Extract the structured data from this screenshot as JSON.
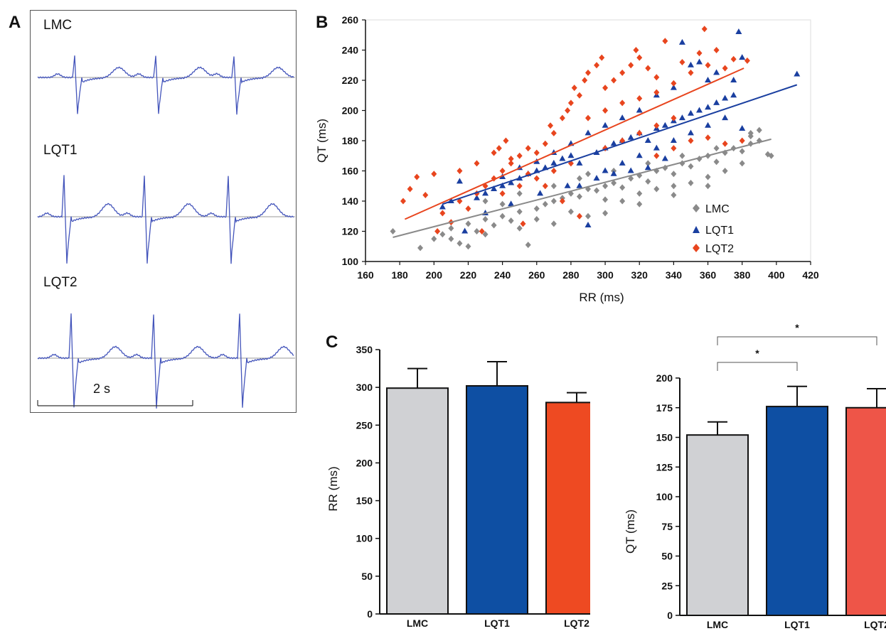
{
  "panels": {
    "a": "A",
    "b": "B",
    "c": "C"
  },
  "ecg": {
    "traces": [
      {
        "label": "LMC",
        "color": "#4455bb"
      },
      {
        "label": "LQT1",
        "color": "#4455bb"
      },
      {
        "label": "LQT2",
        "color": "#4455bb"
      }
    ],
    "scale_bar_label": "2 s"
  },
  "chart_data": [
    {
      "type": "scatter",
      "xlabel": "RR (ms)",
      "ylabel": "QT (ms)",
      "xlim": [
        160,
        420
      ],
      "ylim": [
        100,
        260
      ],
      "xticks": [
        160,
        180,
        200,
        220,
        240,
        260,
        280,
        300,
        320,
        340,
        360,
        380,
        400,
        420
      ],
      "yticks": [
        100,
        120,
        140,
        160,
        180,
        200,
        220,
        240,
        260
      ],
      "legend_position": "lower-right",
      "series": [
        {
          "name": "LMC",
          "color": "#8a8a8a",
          "marker": "diamond",
          "points": [
            [
              176,
              120
            ],
            [
              192,
              109
            ],
            [
              200,
              115
            ],
            [
              205,
              118
            ],
            [
              210,
              122
            ],
            [
              215,
              112
            ],
            [
              220,
              125
            ],
            [
              225,
              120
            ],
            [
              230,
              128
            ],
            [
              235,
              124
            ],
            [
              240,
              130
            ],
            [
              245,
              127
            ],
            [
              250,
              133
            ],
            [
              255,
              111
            ],
            [
              260,
              135
            ],
            [
              265,
              138
            ],
            [
              270,
              140
            ],
            [
              275,
              142
            ],
            [
              280,
              145
            ],
            [
              285,
              143
            ],
            [
              290,
              148
            ],
            [
              295,
              147
            ],
            [
              300,
              150
            ],
            [
              305,
              152
            ],
            [
              310,
              149
            ],
            [
              315,
              155
            ],
            [
              320,
              157
            ],
            [
              325,
              153
            ],
            [
              330,
              160
            ],
            [
              335,
              162
            ],
            [
              340,
              158
            ],
            [
              345,
              165
            ],
            [
              350,
              163
            ],
            [
              355,
              168
            ],
            [
              360,
              170
            ],
            [
              365,
              166
            ],
            [
              370,
              172
            ],
            [
              375,
              175
            ],
            [
              380,
              173
            ],
            [
              385,
              178
            ],
            [
              390,
              180
            ],
            [
              395,
              171
            ],
            [
              397,
              170
            ],
            [
              240,
              138
            ],
            [
              260,
              128
            ],
            [
              280,
              133
            ],
            [
              300,
              141
            ],
            [
              320,
              145
            ],
            [
              340,
              150
            ],
            [
              360,
              156
            ],
            [
              380,
              165
            ],
            [
              270,
              125
            ],
            [
              290,
              130
            ],
            [
              310,
              140
            ],
            [
              330,
              148
            ],
            [
              350,
              152
            ],
            [
              370,
              160
            ],
            [
              250,
              122
            ],
            [
              230,
              118
            ],
            [
              210,
              115
            ],
            [
              285,
              155
            ],
            [
              305,
              160
            ],
            [
              325,
              165
            ],
            [
              345,
              170
            ],
            [
              365,
              175
            ],
            [
              385,
              185
            ],
            [
              390,
              187
            ],
            [
              385,
              183
            ],
            [
              220,
              110
            ],
            [
              300,
              132
            ],
            [
              320,
              138
            ],
            [
              340,
              144
            ],
            [
              360,
              150
            ],
            [
              230,
              140
            ],
            [
              250,
              145
            ],
            [
              270,
              150
            ],
            [
              290,
              158
            ]
          ],
          "trend": [
            [
              176,
              116
            ],
            [
              397,
              181
            ]
          ]
        },
        {
          "name": "LQT1",
          "color": "#1a3fa0",
          "marker": "triangle",
          "points": [
            [
              205,
              136
            ],
            [
              210,
              140
            ],
            [
              215,
              153
            ],
            [
              218,
              120
            ],
            [
              225,
              142
            ],
            [
              230,
              145
            ],
            [
              235,
              148
            ],
            [
              240,
              150
            ],
            [
              245,
              152
            ],
            [
              250,
              155
            ],
            [
              255,
              158
            ],
            [
              260,
              160
            ],
            [
              265,
              162
            ],
            [
              270,
              165
            ],
            [
              275,
              168
            ],
            [
              280,
              170
            ],
            [
              285,
              165
            ],
            [
              290,
              124
            ],
            [
              295,
              172
            ],
            [
              300,
              175
            ],
            [
              305,
              178
            ],
            [
              310,
              180
            ],
            [
              315,
              182
            ],
            [
              320,
              185
            ],
            [
              325,
              180
            ],
            [
              330,
              188
            ],
            [
              335,
              190
            ],
            [
              340,
              193
            ],
            [
              345,
              195
            ],
            [
              350,
              198
            ],
            [
              355,
              200
            ],
            [
              360,
              202
            ],
            [
              365,
              205
            ],
            [
              370,
              208
            ],
            [
              375,
              210
            ],
            [
              378,
              252
            ],
            [
              380,
              235
            ],
            [
              412,
              224
            ],
            [
              360,
              220
            ],
            [
              350,
              230
            ],
            [
              340,
              215
            ],
            [
              330,
              210
            ],
            [
              320,
              200
            ],
            [
              310,
              195
            ],
            [
              300,
              190
            ],
            [
              290,
              185
            ],
            [
              280,
              178
            ],
            [
              270,
              172
            ],
            [
              260,
              166
            ],
            [
              250,
              162
            ],
            [
              240,
              156
            ],
            [
              300,
              160
            ],
            [
              310,
              165
            ],
            [
              320,
              170
            ],
            [
              330,
              175
            ],
            [
              340,
              180
            ],
            [
              350,
              185
            ],
            [
              360,
              190
            ],
            [
              370,
              195
            ],
            [
              380,
              188
            ],
            [
              355,
              232
            ],
            [
              345,
              245
            ],
            [
              365,
              225
            ],
            [
              375,
              220
            ],
            [
              315,
              160
            ],
            [
              325,
              162
            ],
            [
              335,
              168
            ],
            [
              285,
              150
            ],
            [
              295,
              155
            ],
            [
              305,
              158
            ],
            [
              230,
              132
            ],
            [
              245,
              138
            ],
            [
              262,
              145
            ],
            [
              278,
              150
            ]
          ],
          "trend": [
            [
              205,
              138
            ],
            [
              412,
              217
            ]
          ]
        },
        {
          "name": "LQT2",
          "color": "#e8451e",
          "marker": "diamond",
          "points": [
            [
              182,
              140
            ],
            [
              186,
              148
            ],
            [
              190,
              156
            ],
            [
              195,
              144
            ],
            [
              200,
              158
            ],
            [
              202,
              120
            ],
            [
              205,
              132
            ],
            [
              210,
              126
            ],
            [
              215,
              140
            ],
            [
              220,
              135
            ],
            [
              225,
              145
            ],
            [
              228,
              120
            ],
            [
              230,
              150
            ],
            [
              235,
              155
            ],
            [
              238,
              175
            ],
            [
              240,
              160
            ],
            [
              242,
              180
            ],
            [
              245,
              165
            ],
            [
              250,
              170
            ],
            [
              252,
              125
            ],
            [
              255,
              175
            ],
            [
              260,
              172
            ],
            [
              265,
              178
            ],
            [
              268,
              190
            ],
            [
              270,
              185
            ],
            [
              275,
              195
            ],
            [
              278,
              200
            ],
            [
              280,
              205
            ],
            [
              282,
              215
            ],
            [
              285,
              210
            ],
            [
              288,
              220
            ],
            [
              290,
              225
            ],
            [
              295,
              230
            ],
            [
              298,
              235
            ],
            [
              300,
              215
            ],
            [
              305,
              220
            ],
            [
              310,
              225
            ],
            [
              315,
              230
            ],
            [
              318,
              240
            ],
            [
              320,
              235
            ],
            [
              325,
              228
            ],
            [
              330,
              222
            ],
            [
              335,
              246
            ],
            [
              340,
              218
            ],
            [
              345,
              232
            ],
            [
              350,
              225
            ],
            [
              355,
              238
            ],
            [
              358,
              254
            ],
            [
              360,
              230
            ],
            [
              365,
              240
            ],
            [
              370,
              228
            ],
            [
              375,
              234
            ],
            [
              383,
              233
            ],
            [
              290,
              195
            ],
            [
              300,
              200
            ],
            [
              310,
              205
            ],
            [
              320,
              208
            ],
            [
              330,
              212
            ],
            [
              300,
              175
            ],
            [
              310,
              180
            ],
            [
              320,
              185
            ],
            [
              330,
              190
            ],
            [
              340,
              195
            ],
            [
              260,
              155
            ],
            [
              270,
              160
            ],
            [
              280,
              165
            ],
            [
              250,
              150
            ],
            [
              240,
              145
            ],
            [
              285,
              130
            ],
            [
              275,
              140
            ],
            [
              265,
              150
            ],
            [
              255,
              158
            ],
            [
              245,
              168
            ],
            [
              235,
              172
            ],
            [
              225,
              165
            ],
            [
              215,
              160
            ],
            [
              330,
              170
            ],
            [
              340,
              175
            ],
            [
              350,
              180
            ],
            [
              360,
              182
            ],
            [
              370,
              178
            ],
            [
              380,
              180
            ]
          ],
          "trend": [
            [
              183,
              128
            ],
            [
              381,
              228
            ]
          ]
        }
      ]
    },
    {
      "type": "bar",
      "ylabel": "RR (ms)",
      "categories": [
        "LMC",
        "LQT1",
        "LQT2"
      ],
      "values": [
        299,
        302,
        280
      ],
      "errors": [
        26,
        32,
        13
      ],
      "colors": [
        "#d0d1d4",
        "#0e4fa3",
        "#ee4a22"
      ],
      "ylim": [
        0,
        350
      ],
      "yticks": [
        0,
        50,
        100,
        150,
        200,
        250,
        300,
        350
      ]
    },
    {
      "type": "bar",
      "ylabel": "QT (ms)",
      "categories": [
        "LMC",
        "LQT1",
        "LQT2"
      ],
      "values": [
        152,
        176,
        175
      ],
      "errors": [
        11,
        17,
        16
      ],
      "colors": [
        "#d0d1d4",
        "#0e4fa3",
        "#ee5548"
      ],
      "ylim": [
        0,
        200
      ],
      "yticks": [
        0,
        25,
        50,
        75,
        100,
        125,
        150,
        175,
        200
      ],
      "significance": [
        {
          "from": "LMC",
          "to": "LQT1",
          "label": "*"
        },
        {
          "from": "LMC",
          "to": "LQT2",
          "label": "*"
        }
      ]
    }
  ]
}
